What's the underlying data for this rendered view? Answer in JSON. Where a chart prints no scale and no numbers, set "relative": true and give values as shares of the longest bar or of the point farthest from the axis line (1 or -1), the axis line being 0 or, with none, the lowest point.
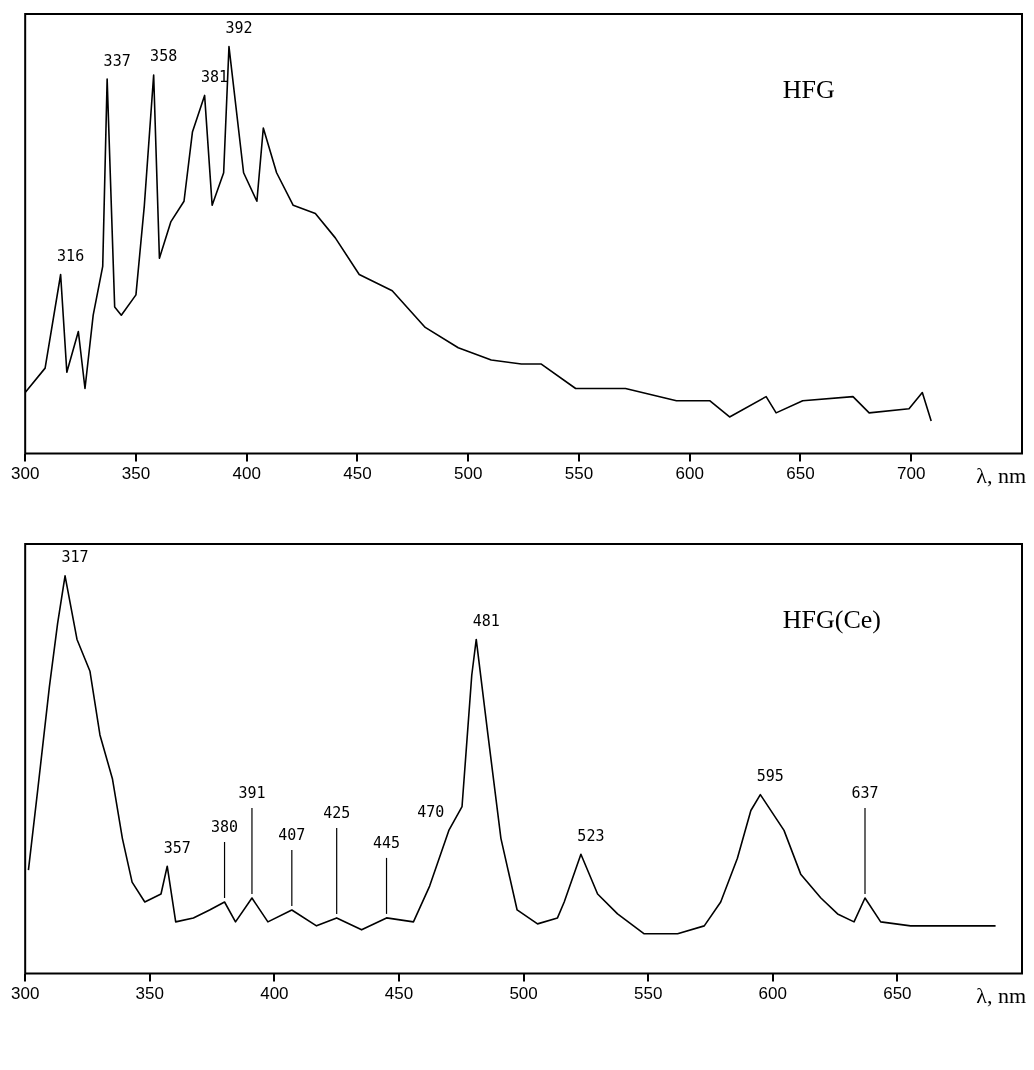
{
  "chart_data": [
    {
      "type": "line",
      "title": "HFG",
      "xlabel": "λ, nm",
      "relative": true,
      "color": "#000000",
      "xlim": [
        300,
        750
      ],
      "xticks": [
        300,
        350,
        400,
        450,
        500,
        550,
        600,
        650,
        700
      ],
      "x": [
        300,
        309,
        316,
        318.8,
        324,
        327,
        330.7,
        335,
        337,
        340.4,
        343.4,
        350,
        353.8,
        358,
        360.6,
        365.8,
        371.7,
        375.5,
        381,
        384.4,
        389.6,
        392,
        398.6,
        404.6,
        407.5,
        413.5,
        421,
        431,
        440,
        450.8,
        465.7,
        480.6,
        495.5,
        510.4,
        524,
        533,
        548.5,
        571,
        594,
        609,
        618,
        634.5,
        639,
        651,
        673.7,
        681,
        699,
        705,
        709
      ],
      "values": [
        0.15,
        0.21,
        0.44,
        0.2,
        0.3,
        0.16,
        0.34,
        0.46,
        0.92,
        0.36,
        0.34,
        0.39,
        0.61,
        0.93,
        0.48,
        0.57,
        0.62,
        0.79,
        0.88,
        0.61,
        0.69,
        1.0,
        0.69,
        0.62,
        0.8,
        0.69,
        0.61,
        0.59,
        0.53,
        0.44,
        0.4,
        0.31,
        0.26,
        0.23,
        0.22,
        0.22,
        0.16,
        0.16,
        0.13,
        0.13,
        0.09,
        0.14,
        0.1,
        0.13,
        0.14,
        0.1,
        0.11,
        0.15,
        0.08
      ],
      "annotations": [
        {
          "text": "316",
          "x": 316,
          "y": 0.44
        },
        {
          "text": "337",
          "x": 337,
          "y": 0.92
        },
        {
          "text": "358",
          "x": 358,
          "y": 0.93
        },
        {
          "text": "381",
          "x": 381,
          "y": 0.88
        },
        {
          "text": "392",
          "x": 392,
          "y": 1.0
        }
      ]
    },
    {
      "type": "line",
      "title": "HFG(Ce)",
      "xlabel": "λ, nm",
      "relative": true,
      "color": "#000000",
      "xlim": [
        300,
        700
      ],
      "xticks": [
        300,
        350,
        400,
        450,
        500,
        550,
        600,
        650
      ],
      "x": [
        301.3,
        305,
        309.7,
        313,
        316,
        320.8,
        326,
        330,
        335,
        339,
        342.9,
        348,
        354.5,
        357,
        360.4,
        367.5,
        374,
        380,
        384.4,
        391,
        397.4,
        407,
        416.9,
        425,
        435,
        445,
        455.8,
        462.3,
        470,
        475.3,
        479.2,
        481,
        485.7,
        490.9,
        497.4,
        505.6,
        513.6,
        516.3,
        523,
        529.7,
        537.7,
        548.4,
        561.8,
        572.5,
        579.1,
        585.8,
        591.2,
        595,
        604.5,
        611.2,
        619.3,
        626,
        632.6,
        637,
        643.3,
        655.3,
        689.4
      ],
      "values": [
        0.26,
        0.46,
        0.72,
        0.88,
        1.0,
        0.84,
        0.76,
        0.6,
        0.49,
        0.34,
        0.23,
        0.18,
        0.2,
        0.27,
        0.13,
        0.14,
        0.16,
        0.18,
        0.13,
        0.19,
        0.13,
        0.16,
        0.12,
        0.14,
        0.11,
        0.14,
        0.13,
        0.22,
        0.36,
        0.42,
        0.75,
        0.84,
        0.6,
        0.34,
        0.16,
        0.125,
        0.14,
        0.18,
        0.3,
        0.2,
        0.15,
        0.1,
        0.1,
        0.12,
        0.18,
        0.29,
        0.41,
        0.45,
        0.36,
        0.25,
        0.19,
        0.15,
        0.13,
        0.19,
        0.13,
        0.12,
        0.12
      ],
      "annotations": [
        {
          "text": "317",
          "x": 316,
          "y": 1.0
        },
        {
          "text": "357",
          "x": 357,
          "y": 0.27
        },
        {
          "text": "380",
          "x": 380,
          "y": 0.18
        },
        {
          "text": "391",
          "x": 391,
          "y": 0.19
        },
        {
          "text": "407",
          "x": 407,
          "y": 0.16
        },
        {
          "text": "425",
          "x": 425,
          "y": 0.14
        },
        {
          "text": "445",
          "x": 445,
          "y": 0.14
        },
        {
          "text": "470",
          "x": 470,
          "y": 0.36
        },
        {
          "text": "481",
          "x": 481,
          "y": 0.84
        },
        {
          "text": "523",
          "x": 523,
          "y": 0.3
        },
        {
          "text": "595",
          "x": 595,
          "y": 0.45
        },
        {
          "text": "637",
          "x": 637,
          "y": 0.19
        }
      ]
    }
  ]
}
